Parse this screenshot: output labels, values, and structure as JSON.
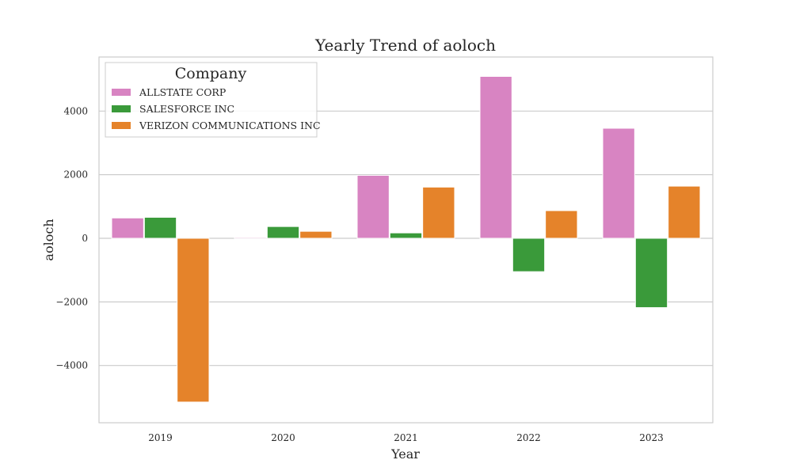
{
  "chart_data": {
    "type": "bar",
    "title": "Yearly Trend of aoloch",
    "xlabel": "Year",
    "ylabel": "aoloch",
    "categories": [
      "2019",
      "2020",
      "2021",
      "2022",
      "2023"
    ],
    "ylim": [
      -5800,
      5700
    ],
    "yticks": [
      -4000,
      -2000,
      0,
      2000,
      4000
    ],
    "grid": true,
    "legend": {
      "title": "Company",
      "placement": "top-left"
    },
    "series": [
      {
        "name": "ALLSTATE CORP",
        "color": "#d884c2",
        "values": [
          640,
          30,
          1980,
          5090,
          3460
        ]
      },
      {
        "name": "SALESFORCE INC",
        "color": "#3a9a3a",
        "values": [
          660,
          370,
          170,
          -1050,
          -2180
        ]
      },
      {
        "name": "VERIZON COMMUNICATIONS INC",
        "color": "#e5832a",
        "values": [
          -5150,
          220,
          1610,
          870,
          1640
        ]
      }
    ]
  }
}
